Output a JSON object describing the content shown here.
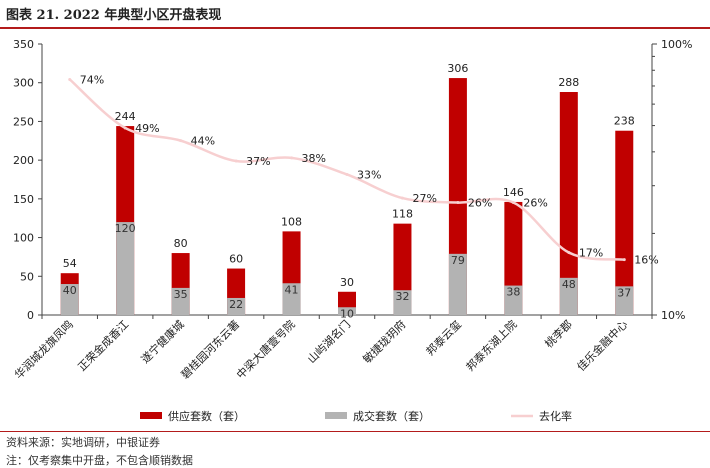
{
  "header": {
    "title": "图表 21. 2022 年典型小区开盘表现"
  },
  "footer": {
    "source": "资料来源：实地调研，中银证券",
    "note": "注：仅考察集中开盘，不包含顺销数据"
  },
  "colors": {
    "supply": "#c00000",
    "deal": "#b3b3b3",
    "rate": "#f7cfd0",
    "rule": "#b31b1b"
  },
  "chart_data": {
    "type": "bar",
    "categories": [
      "华润城龙旗凤鸣",
      "正荣金成香江",
      "遂宁健康城",
      "碧桂园河东云著",
      "中梁大唐壹号院",
      "山屿湖名门",
      "敏捷珑玥府",
      "邦泰云玺",
      "邦泰东湖上院",
      "桃李郡",
      "佳乐金融中心"
    ],
    "series": [
      {
        "name": "供应套数（套）",
        "values": [
          54,
          244,
          80,
          60,
          108,
          30,
          118,
          306,
          146,
          288,
          238
        ]
      },
      {
        "name": "成交套数（套）",
        "values": [
          40,
          120,
          35,
          22,
          41,
          10,
          32,
          79,
          38,
          48,
          37
        ]
      },
      {
        "name": "去化率",
        "axis": "right",
        "values": [
          0.74,
          0.49,
          0.44,
          0.37,
          0.38,
          0.33,
          0.27,
          0.26,
          0.26,
          0.17,
          0.16
        ]
      }
    ],
    "rate_labels": [
      "74%",
      "49%",
      "44%",
      "37%",
      "38%",
      "33%",
      "27%",
      "26%",
      "26%",
      "17%",
      "16%"
    ],
    "y_left": {
      "ylim": [
        0,
        350
      ],
      "ticks": [
        0,
        50,
        100,
        150,
        200,
        250,
        300,
        350
      ]
    },
    "y_right": {
      "scale": "log",
      "ylim": [
        0.1,
        1
      ],
      "tick_labels": [
        "100%",
        "10%"
      ]
    },
    "legend": {
      "placement": "bottom"
    },
    "grid": false
  }
}
